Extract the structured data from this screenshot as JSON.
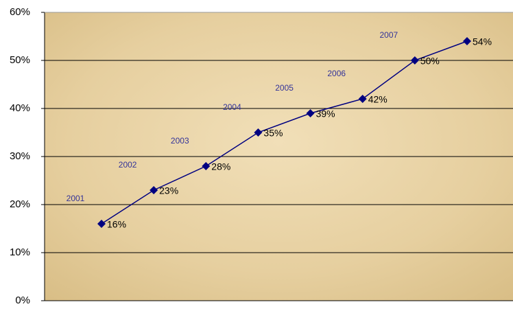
{
  "chart_data": {
    "type": "line",
    "categories": [
      "2001",
      "2002",
      "2003",
      "2004",
      "2005",
      "2006",
      "2007",
      null
    ],
    "series": [
      {
        "color": "#000080",
        "values": [
          16,
          23,
          28,
          35,
          39,
          42,
          50,
          54
        ],
        "value_labels": [
          "16%",
          "23%",
          "28%",
          "35%",
          "39%",
          "42%",
          "50%",
          "54%"
        ]
      }
    ],
    "ylim": [
      0,
      60
    ],
    "yticks": [
      {
        "value": 0,
        "label": "0%"
      },
      {
        "value": 10,
        "label": "10%"
      },
      {
        "value": 20,
        "label": "20%"
      },
      {
        "value": 30,
        "label": "30%"
      },
      {
        "value": 40,
        "label": "40%"
      },
      {
        "value": 50,
        "label": "50%"
      },
      {
        "value": 60,
        "label": "60%"
      }
    ],
    "grid": true
  }
}
